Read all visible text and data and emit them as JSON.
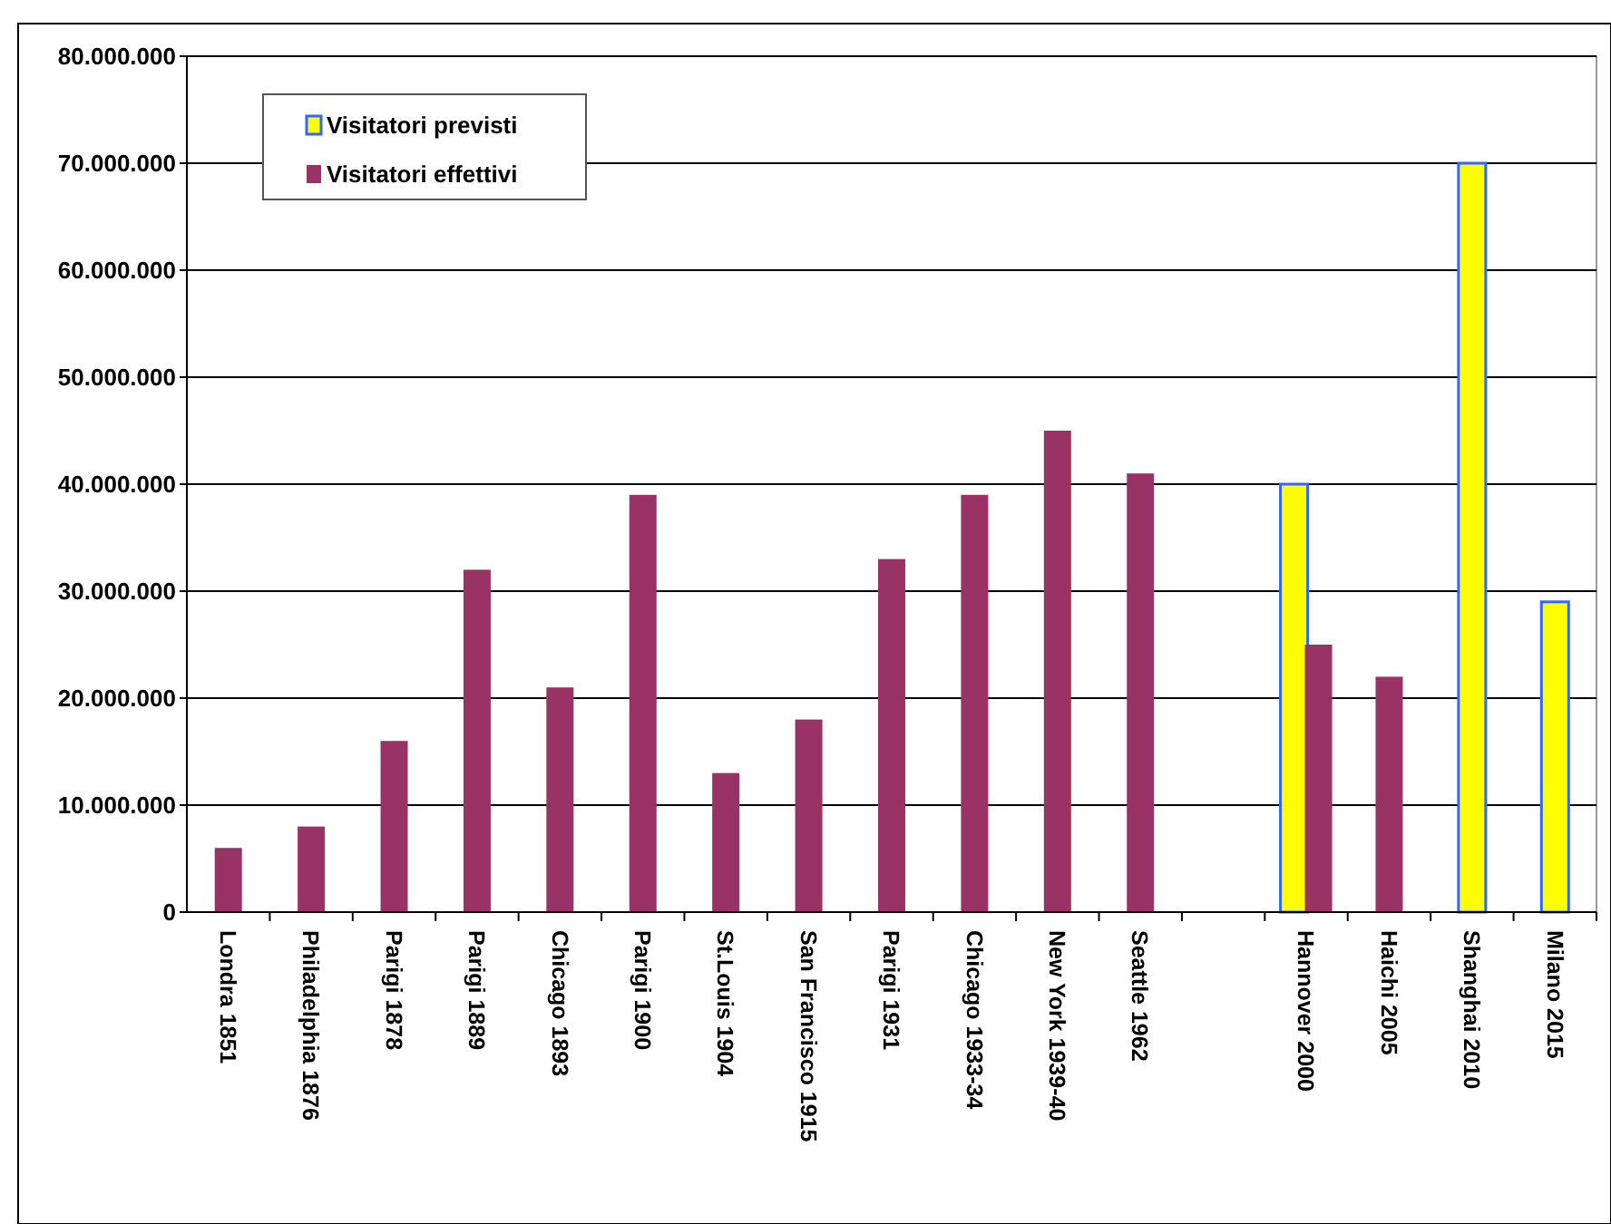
{
  "chart_data": {
    "type": "bar",
    "categories": [
      "Londra 1851",
      "Philadelphia 1876",
      "Parigi 1878",
      "Parigi 1889",
      "Chicago 1893",
      "Parigi 1900",
      "St.Louis 1904",
      "San Francisco 1915",
      "Parigi 1931",
      "Chicago 1933-34",
      "New York 1939-40",
      "Seattle 1962",
      null,
      "Hannover 2000",
      "Haichi 2005",
      "Shanghai 2010",
      "Milano 2015"
    ],
    "series": [
      {
        "name": "Visitatori previsti",
        "color": "#ffff00",
        "values": [
          null,
          null,
          null,
          null,
          null,
          null,
          null,
          null,
          null,
          null,
          null,
          null,
          null,
          40000000,
          null,
          70000000,
          29000000
        ]
      },
      {
        "name": "Visitatori effettivi",
        "color": "#993366",
        "values": [
          6000000,
          8000000,
          16000000,
          32000000,
          21000000,
          39000000,
          13000000,
          18000000,
          33000000,
          39000000,
          45000000,
          41000000,
          null,
          25000000,
          22000000,
          null,
          null
        ]
      }
    ],
    "ylim": [
      0,
      80000000
    ],
    "yticks": [
      {
        "value": 0,
        "label": "0"
      },
      {
        "value": 10000000,
        "label": "10.000.000"
      },
      {
        "value": 20000000,
        "label": "20.000.000"
      },
      {
        "value": 30000000,
        "label": "30.000.000"
      },
      {
        "value": 40000000,
        "label": "40.000.000"
      },
      {
        "value": 50000000,
        "label": "50.000.000"
      },
      {
        "value": 60000000,
        "label": "60.000.000"
      },
      {
        "value": 70000000,
        "label": "70.000.000"
      },
      {
        "value": 80000000,
        "label": "80.000.000"
      }
    ],
    "grid": "y",
    "legend": "top left"
  }
}
